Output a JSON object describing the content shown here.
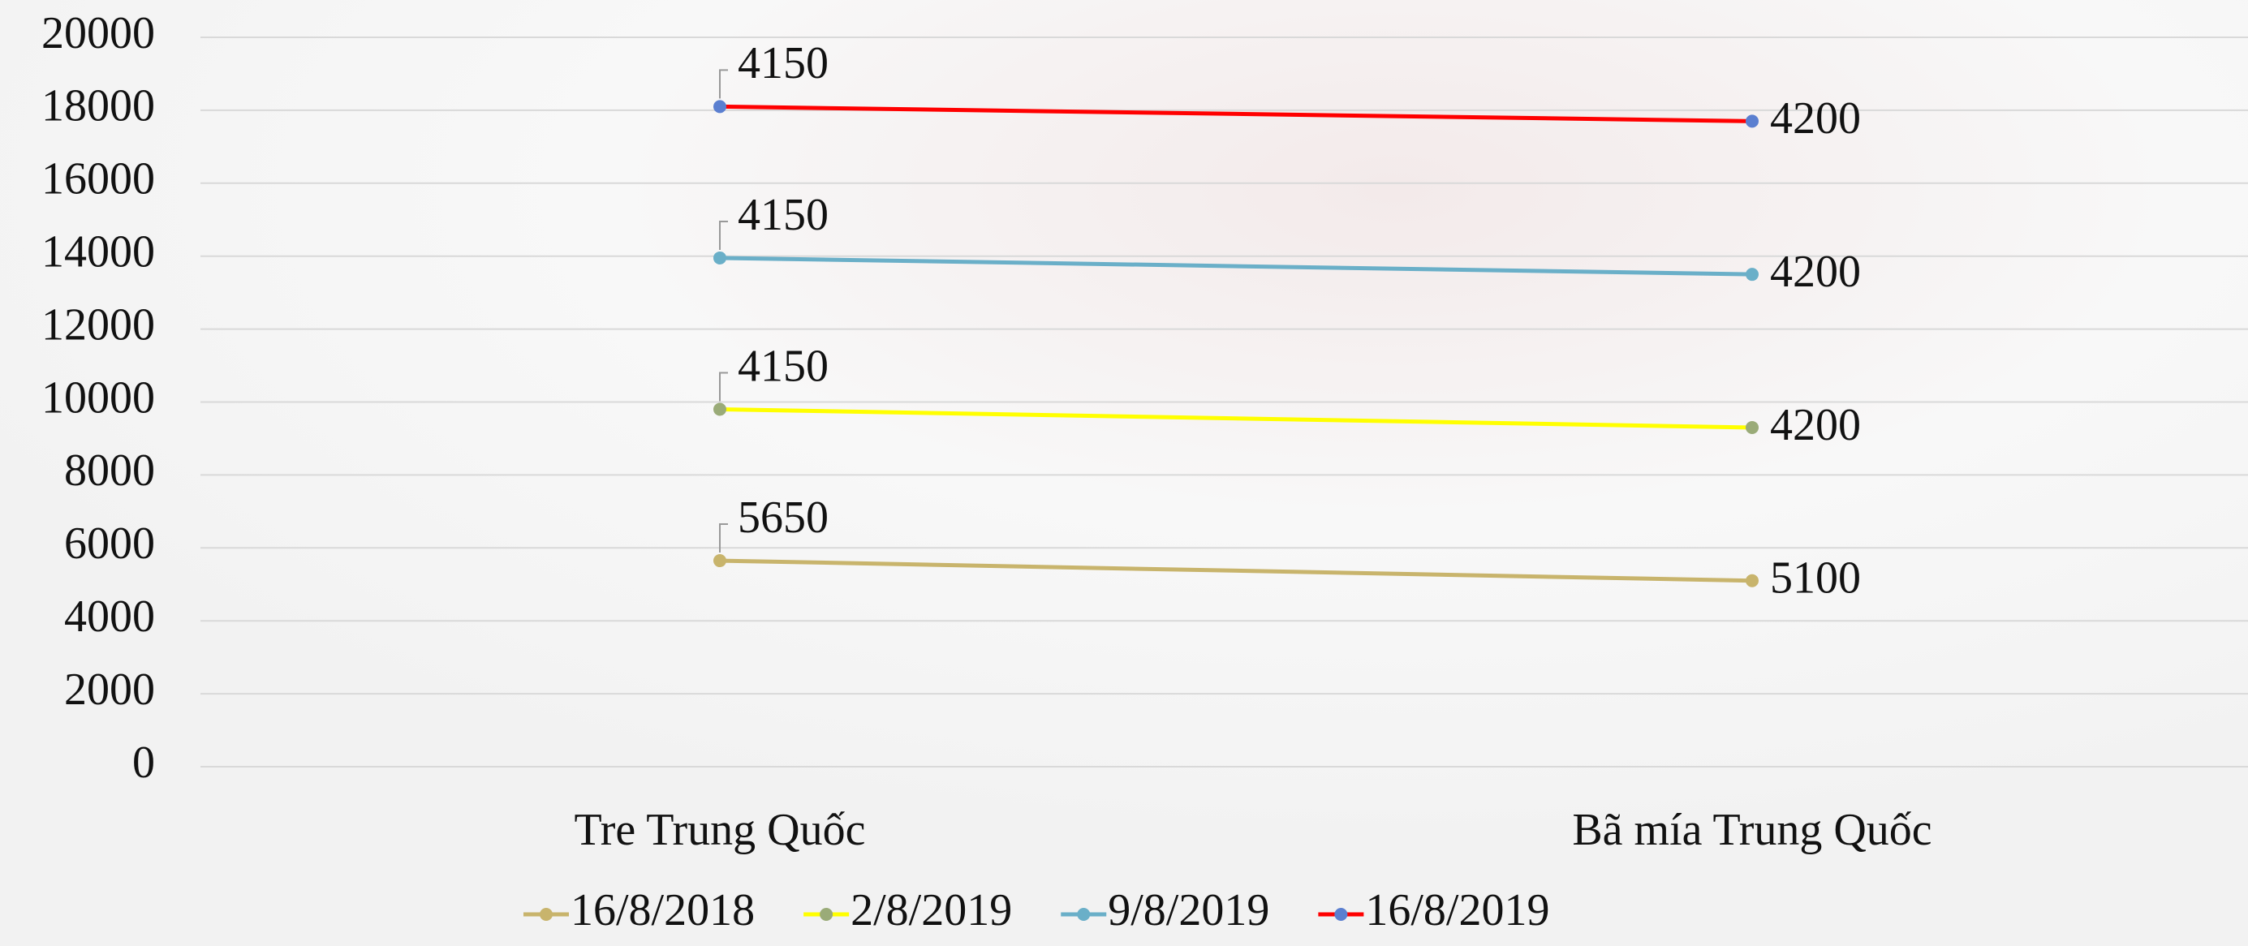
{
  "chart_data": {
    "type": "line",
    "stacked": true,
    "categories": [
      "Tre Trung Quốc",
      "Bã mía Trung Quốc"
    ],
    "series": [
      {
        "name": "16/8/2018",
        "color": "#c8b46c",
        "marker_color": "#c8b46c",
        "values": [
          5650,
          5100
        ]
      },
      {
        "name": "2/8/2019",
        "color": "#ffff00",
        "marker_color": "#9aab78",
        "values": [
          4150,
          4200
        ]
      },
      {
        "name": "9/8/2019",
        "color": "#6aafc8",
        "marker_color": "#6aafc8",
        "values": [
          4150,
          4200
        ]
      },
      {
        "name": "16/8/2019",
        "color": "#ff0000",
        "marker_color": "#5b7fd0",
        "values": [
          4150,
          4200
        ]
      }
    ],
    "ylim": [
      0,
      20000
    ],
    "yticks": [
      0,
      2000,
      4000,
      6000,
      8000,
      10000,
      12000,
      14000,
      16000,
      18000,
      20000
    ],
    "grid": true,
    "data_labels": true,
    "legend": "bottom"
  }
}
